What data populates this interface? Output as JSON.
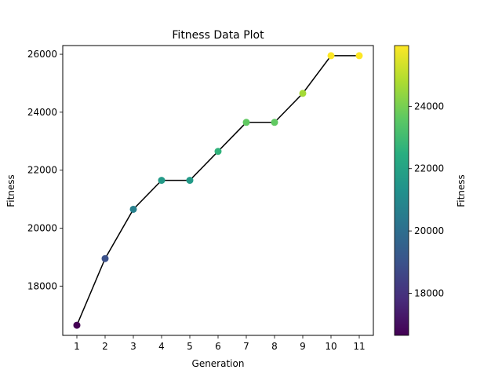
{
  "chart_data": {
    "type": "scatter",
    "title": "Fitness Data Plot",
    "xlabel": "Generation",
    "ylabel": "Fitness",
    "x": [
      1,
      2,
      3,
      4,
      5,
      6,
      7,
      8,
      9,
      10,
      11
    ],
    "series": [
      {
        "values": [
          16650,
          18950,
          20650,
          21650,
          21650,
          22650,
          23650,
          23650,
          24650,
          25950,
          25950
        ],
        "line_color": "#000000",
        "marker_colormap": "viridis"
      }
    ],
    "xlim": [
      0.5,
      11.5
    ],
    "ylim": [
      16300,
      26300
    ],
    "x_ticks": [
      1,
      2,
      3,
      4,
      5,
      6,
      7,
      8,
      9,
      10,
      11
    ],
    "y_ticks": [
      18000,
      20000,
      22000,
      24000,
      26000
    ],
    "grid": false,
    "legend": "none",
    "colorbar": {
      "label": "Fitness",
      "range": [
        16650,
        25950
      ],
      "ticks": [
        18000,
        20000,
        22000,
        24000
      ],
      "colormap": "viridis"
    }
  }
}
